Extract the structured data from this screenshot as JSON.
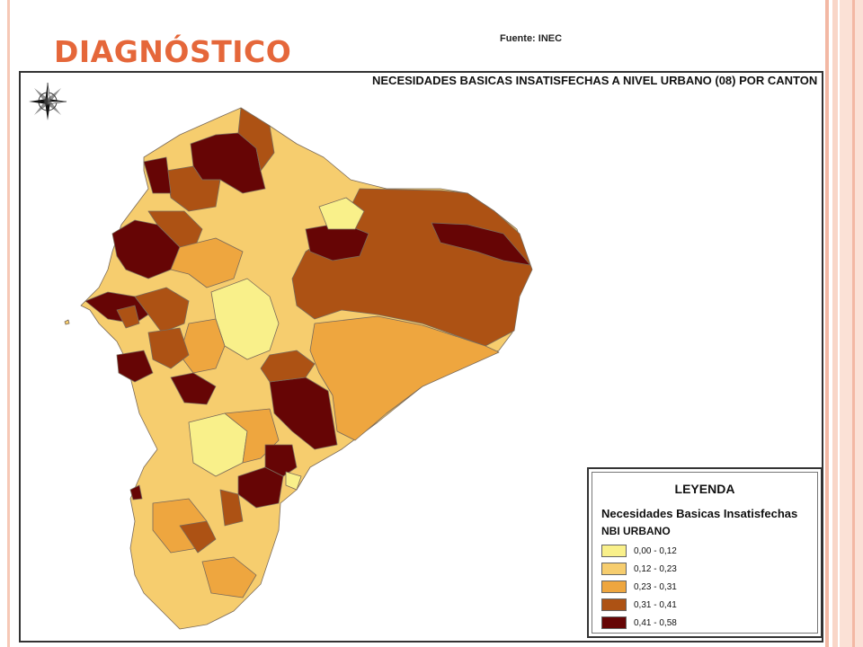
{
  "slide": {
    "title": "DIAGNÓSTICO",
    "source": "Fuente: INEC"
  },
  "map": {
    "title": "NECESIDADES BASICAS INSATISFECHAS A NIVEL URBANO (08) POR CANTON",
    "compass_icon": "compass-rose-icon",
    "legend": {
      "title": "LEYENDA",
      "subtitle": "Necesidades Basicas Insatisfechas",
      "variable": "NBI URBANO",
      "classes": [
        {
          "label": "0,00 - 0,12",
          "color": "#f9f08a"
        },
        {
          "label": "0,12 - 0,23",
          "color": "#f6cd6e"
        },
        {
          "label": "0,23 - 0,31",
          "color": "#eea63f"
        },
        {
          "label": "0,31 - 0,41",
          "color": "#ad5214"
        },
        {
          "label": "0,41 - 0,58",
          "color": "#660505"
        }
      ]
    }
  }
}
